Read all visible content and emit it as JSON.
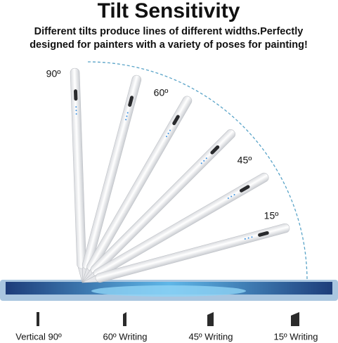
{
  "header": {
    "title": "Tilt Sensitivity",
    "subtitle": [
      "Different tilts produce lines of different widths.Perfectly",
      "designed for painters with a variety of poses for painting!"
    ]
  },
  "angle_labels": [
    "90º",
    "60º",
    "45º",
    "15º"
  ],
  "stroke_labels": [
    "Vertical 90º",
    "60º Writing",
    "45º Writing",
    "15º Writing"
  ]
}
